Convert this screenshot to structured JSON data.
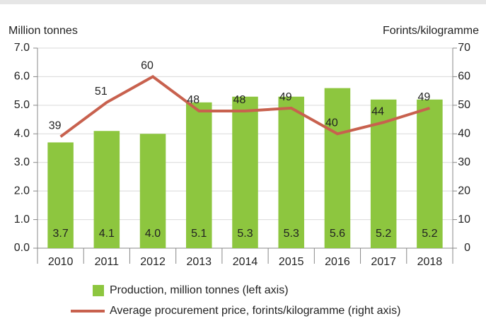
{
  "chart_data": {
    "type": "bar_line",
    "ylabel": "Million tonnes",
    "y2label": "Forints/kilogramme",
    "categories": [
      "2010",
      "2011",
      "2012",
      "2013",
      "2014",
      "2015",
      "2016",
      "2017",
      "2018"
    ],
    "series": [
      {
        "name": "Production, million tonnes (left axis)",
        "type": "bar",
        "color": "#8dc63f",
        "values": [
          3.7,
          4.1,
          4.0,
          5.1,
          5.3,
          5.3,
          5.6,
          5.2,
          5.2
        ],
        "value_labels": [
          "3.7",
          "4.1",
          "4.0",
          "5.1",
          "5.3",
          "5.3",
          "5.6",
          "5.2",
          "5.2"
        ]
      },
      {
        "name": "Average procurement price, forints/kilogramme (right axis)",
        "type": "line",
        "axis": "y2",
        "color": "#c8614e",
        "values": [
          39,
          51,
          60,
          48,
          48,
          49,
          40,
          44,
          49
        ]
      }
    ],
    "ylim": [
      0,
      7
    ],
    "yticks": [
      {
        "value": 0,
        "label": "0.0"
      },
      {
        "value": 1,
        "label": "1.0"
      },
      {
        "value": 2,
        "label": "2.0"
      },
      {
        "value": 3,
        "label": "3.0"
      },
      {
        "value": 4,
        "label": "4.0"
      },
      {
        "value": 5,
        "label": "5.0"
      },
      {
        "value": 6,
        "label": "6.0"
      },
      {
        "value": 7,
        "label": "7.0"
      }
    ],
    "y2lim": [
      0,
      70
    ],
    "y2ticks": [
      0,
      10,
      20,
      30,
      40,
      50,
      60,
      70
    ],
    "grid": true
  }
}
